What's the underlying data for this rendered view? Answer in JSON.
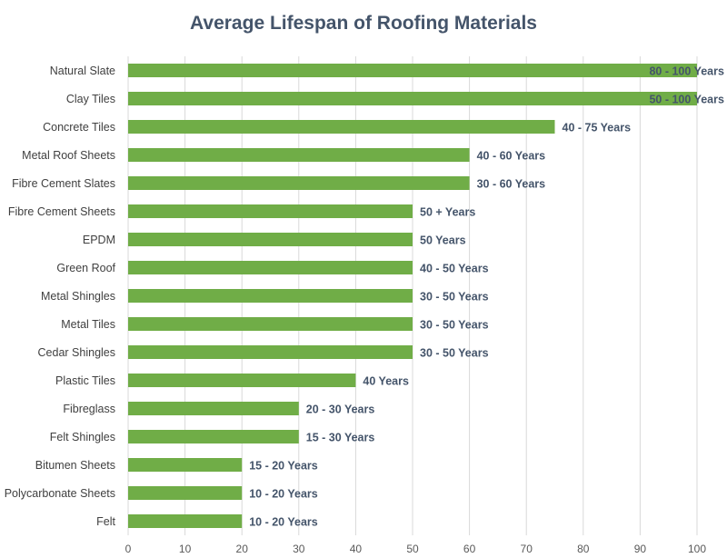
{
  "chart_data": {
    "type": "bar",
    "orientation": "horizontal",
    "title": "Average Lifespan of Roofing Materials",
    "xlabel": "",
    "ylabel": "",
    "xlim": [
      0,
      100
    ],
    "x_ticks": [
      0,
      10,
      20,
      30,
      40,
      50,
      60,
      70,
      80,
      90,
      100
    ],
    "grid": "vertical",
    "legend": "none",
    "bar_color": "#70ad47",
    "categories": [
      "Natural Slate",
      "Clay Tiles",
      "Concrete Tiles",
      "Metal Roof Sheets",
      "Fibre Cement Slates",
      "Fibre Cement Sheets",
      "EPDM",
      "Green Roof",
      "Metal Shingles",
      "Metal Tiles",
      "Cedar Shingles",
      "Plastic Tiles",
      "Fibreglass",
      "Felt Shingles",
      "Bitumen Sheets",
      "Polycarbonate Sheets",
      "Felt"
    ],
    "values": [
      100,
      100,
      75,
      60,
      60,
      50,
      50,
      50,
      50,
      50,
      50,
      40,
      30,
      30,
      20,
      20,
      20
    ],
    "data_labels": [
      "80 - 100 Years",
      "50 - 100 Years",
      "40 - 75 Years",
      "40 - 60 Years",
      "30 - 60 Years",
      "50 + Years",
      "50 Years",
      "40 - 50 Years",
      "30 - 50 Years",
      "30 - 50 Years",
      "30 - 50 Years",
      "40 Years",
      "20 - 30 Years",
      "15 - 30 Years",
      "15 - 20 Years",
      "10 - 20 Years",
      "10 - 20 Years"
    ]
  }
}
